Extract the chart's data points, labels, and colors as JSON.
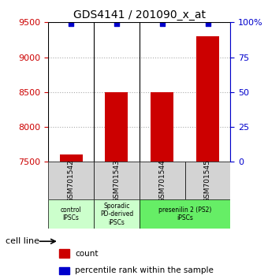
{
  "title": "GDS4141 / 201090_x_at",
  "samples": [
    "GSM701542",
    "GSM701543",
    "GSM701544",
    "GSM701545"
  ],
  "counts": [
    7600,
    8500,
    8500,
    9300
  ],
  "percentiles": [
    99,
    99,
    99,
    99
  ],
  "ylim_left": [
    7500,
    9500
  ],
  "ylim_right": [
    0,
    100
  ],
  "yticks_left": [
    7500,
    8000,
    8500,
    9000,
    9500
  ],
  "yticks_right": [
    0,
    25,
    50,
    75,
    100
  ],
  "bar_color": "#cc0000",
  "dot_color": "#0000cc",
  "bar_width": 0.5,
  "categories": [
    {
      "label": "control\nIPSCs",
      "samples": [
        0
      ],
      "color": "#ccffcc"
    },
    {
      "label": "Sporadic\nPD-derived\niPSCs",
      "samples": [
        1
      ],
      "color": "#ccffcc"
    },
    {
      "label": "presenilin 2 (PS2)\niPSCs",
      "samples": [
        2,
        3
      ],
      "color": "#66ff66"
    }
  ],
  "legend_count_label": "count",
  "legend_percentile_label": "percentile rank within the sample",
  "cell_line_label": "cell line",
  "background_color": "#ffffff",
  "grid_color": "#aaaaaa",
  "left_axis_color": "#cc0000",
  "right_axis_color": "#0000cc"
}
